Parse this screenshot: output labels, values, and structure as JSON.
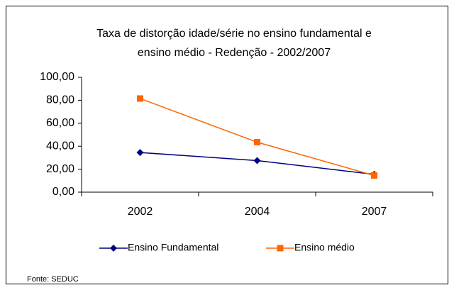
{
  "chart_data": {
    "type": "line",
    "title": [
      "Taxa de distorção idade/série no ensino fundamental e",
      "ensino médio - Redenção -  2002/2007"
    ],
    "categories": [
      "2002",
      "2004",
      "2007"
    ],
    "series": [
      {
        "name": "Ensino Fundamental",
        "color": "#000080",
        "marker": "diamond",
        "values": [
          34.5,
          27.5,
          15.5
        ]
      },
      {
        "name": "Ensino médio",
        "color": "#ff6600",
        "marker": "square",
        "values": [
          81.5,
          43.5,
          14.5
        ]
      }
    ],
    "ylim": [
      0,
      100
    ],
    "yticks": [
      {
        "value": 0,
        "label": "0,00"
      },
      {
        "value": 20,
        "label": "20,00"
      },
      {
        "value": 40,
        "label": "40,00"
      },
      {
        "value": 60,
        "label": "60,00"
      },
      {
        "value": 80,
        "label": "80,00"
      },
      {
        "value": 100,
        "label": "100,00"
      }
    ],
    "grid": false,
    "legend": "bottom",
    "source": "Fonte: SEDUC"
  }
}
